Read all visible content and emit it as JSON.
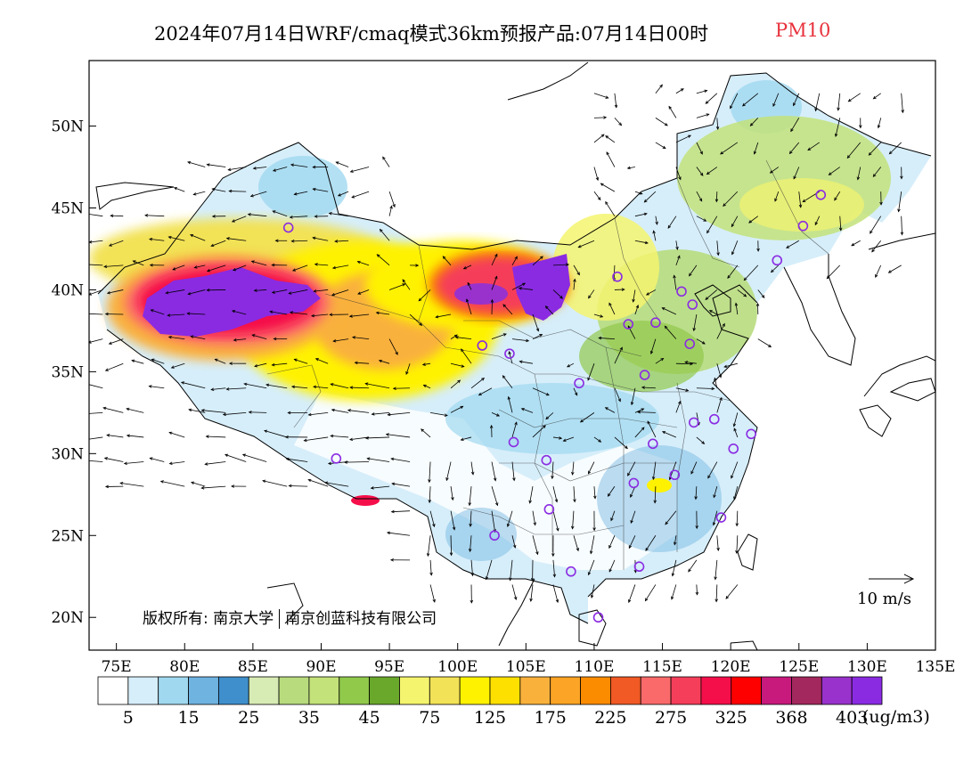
{
  "title": {
    "main": "2024年07月14日WRF/cmaq模式36km预报产品:07月14日00时",
    "pollutant": "PM10"
  },
  "axes": {
    "lat_ticks": [
      "50N",
      "45N",
      "40N",
      "35N",
      "30N",
      "25N",
      "20N"
    ],
    "lon_ticks": [
      "75E",
      "80E",
      "85E",
      "90E",
      "95E",
      "100E",
      "105E",
      "110E",
      "115E",
      "120E",
      "125E",
      "130E",
      "135E"
    ]
  },
  "credit": {
    "label": "版权所有:",
    "org1": "南京大学",
    "org2": "南京创蓝科技有限公司"
  },
  "vector_scale": {
    "label": "10 m/s"
  },
  "legend": {
    "units": "(ug/m3)",
    "tick_labels": [
      "5",
      "15",
      "25",
      "35",
      "45",
      "75",
      "125",
      "175",
      "225",
      "275",
      "325",
      "368",
      "403"
    ],
    "colors": [
      "#ffffff",
      "#d6eefa",
      "#a0d8f0",
      "#6fb3e0",
      "#3f8fcc",
      "#d7ebb4",
      "#b8db7e",
      "#c3e27a",
      "#91c94b",
      "#6aa82c",
      "#f4f46e",
      "#f2e257",
      "#fff200",
      "#fde000",
      "#f9b13c",
      "#fba425",
      "#fb8c00",
      "#f15a24",
      "#fb6a6a",
      "#f53e5a",
      "#f50f4a",
      "#ff0000",
      "#c8197d",
      "#a3285e",
      "#9932cc",
      "#8a2be2"
    ]
  },
  "stations": [
    [
      87.6,
      43.8
    ],
    [
      101.8,
      36.6
    ],
    [
      103.8,
      36.1
    ],
    [
      106.3,
      38.5
    ],
    [
      111.7,
      40.8
    ],
    [
      108.9,
      34.3
    ],
    [
      112.5,
      37.9
    ],
    [
      114.5,
      38.0
    ],
    [
      116.4,
      39.9
    ],
    [
      117.2,
      39.1
    ],
    [
      117.0,
      36.7
    ],
    [
      113.7,
      34.8
    ],
    [
      114.3,
      30.6
    ],
    [
      112.9,
      28.2
    ],
    [
      115.9,
      28.7
    ],
    [
      117.3,
      31.9
    ],
    [
      118.8,
      32.1
    ],
    [
      120.2,
      30.3
    ],
    [
      121.5,
      31.2
    ],
    [
      119.3,
      26.1
    ],
    [
      113.3,
      23.1
    ],
    [
      108.3,
      22.8
    ],
    [
      110.3,
      20.0
    ],
    [
      106.7,
      26.6
    ],
    [
      102.7,
      25.0
    ],
    [
      104.1,
      30.7
    ],
    [
      106.5,
      29.6
    ],
    [
      91.1,
      29.7
    ],
    [
      123.4,
      41.8
    ],
    [
      125.3,
      43.9
    ],
    [
      126.6,
      45.8
    ]
  ]
}
